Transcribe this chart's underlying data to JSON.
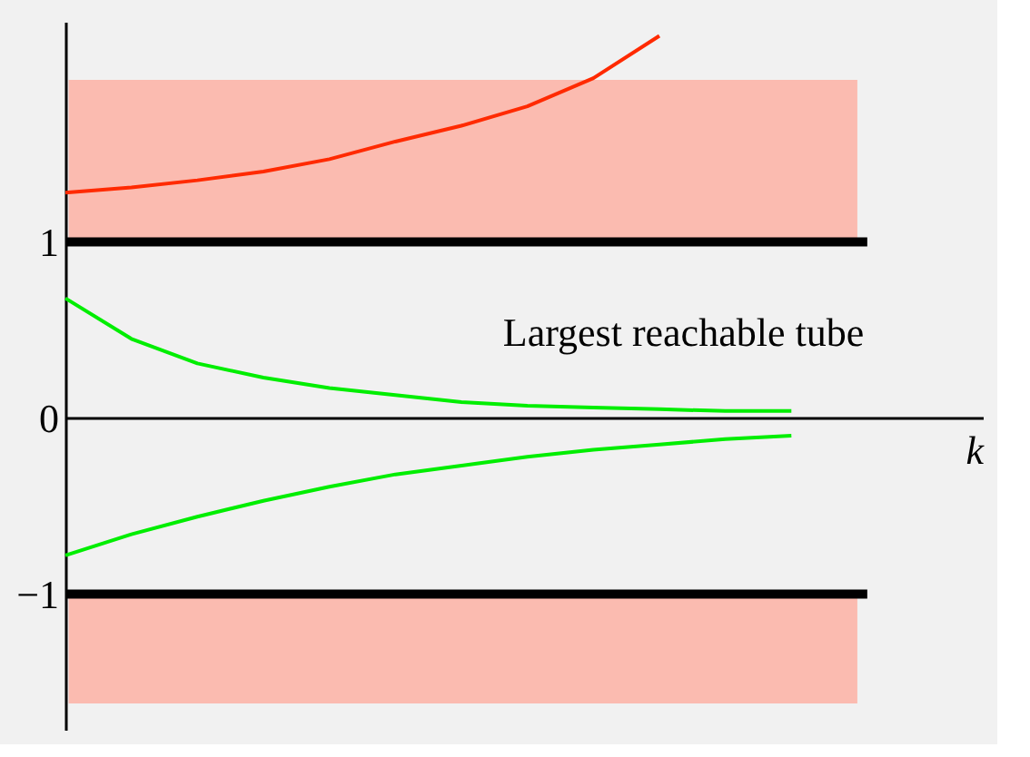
{
  "chart_data": {
    "type": "line",
    "xlabel": "k",
    "categories": [
      null,
      null,
      null,
      null,
      null,
      null,
      null,
      null,
      null,
      null,
      null,
      null
    ],
    "series": [
      {
        "color": "#ff2a00",
        "values": [
          1.28,
          1.31,
          1.35,
          1.4,
          1.47,
          1.57,
          1.66,
          1.77,
          1.93,
          2.17,
          null,
          null
        ]
      },
      {
        "color": "#00ee00",
        "values": [
          0.68,
          0.45,
          0.31,
          0.23,
          0.17,
          0.13,
          0.09,
          0.07,
          0.06,
          0.05,
          0.04,
          0.04
        ]
      },
      {
        "color": "#00ee00",
        "values": [
          -0.78,
          -0.66,
          -0.56,
          -0.47,
          -0.39,
          -0.32,
          -0.27,
          -0.22,
          -0.18,
          -0.15,
          -0.12,
          -0.1
        ]
      }
    ],
    "ylim": [
      -1.77,
      2.25
    ],
    "yticks": [
      {
        "value": -1,
        "label": "−1"
      },
      0,
      1
    ],
    "ref_lines": [
      {
        "axis": "y",
        "value": 1,
        "color": "#000000"
      },
      {
        "axis": "y",
        "value": -1,
        "color": "#000000"
      }
    ],
    "bands": [
      {
        "axis": "y",
        "from": 1,
        "to": 1.92,
        "color": "#fbbbb0"
      },
      {
        "axis": "y",
        "from": -1.62,
        "to": -1,
        "color": "#fbbbb0"
      }
    ],
    "annotations": [
      "Largest reachable tube"
    ],
    "tick_labels": "y",
    "grid": false,
    "marker": "none",
    "line_style": "solid"
  }
}
